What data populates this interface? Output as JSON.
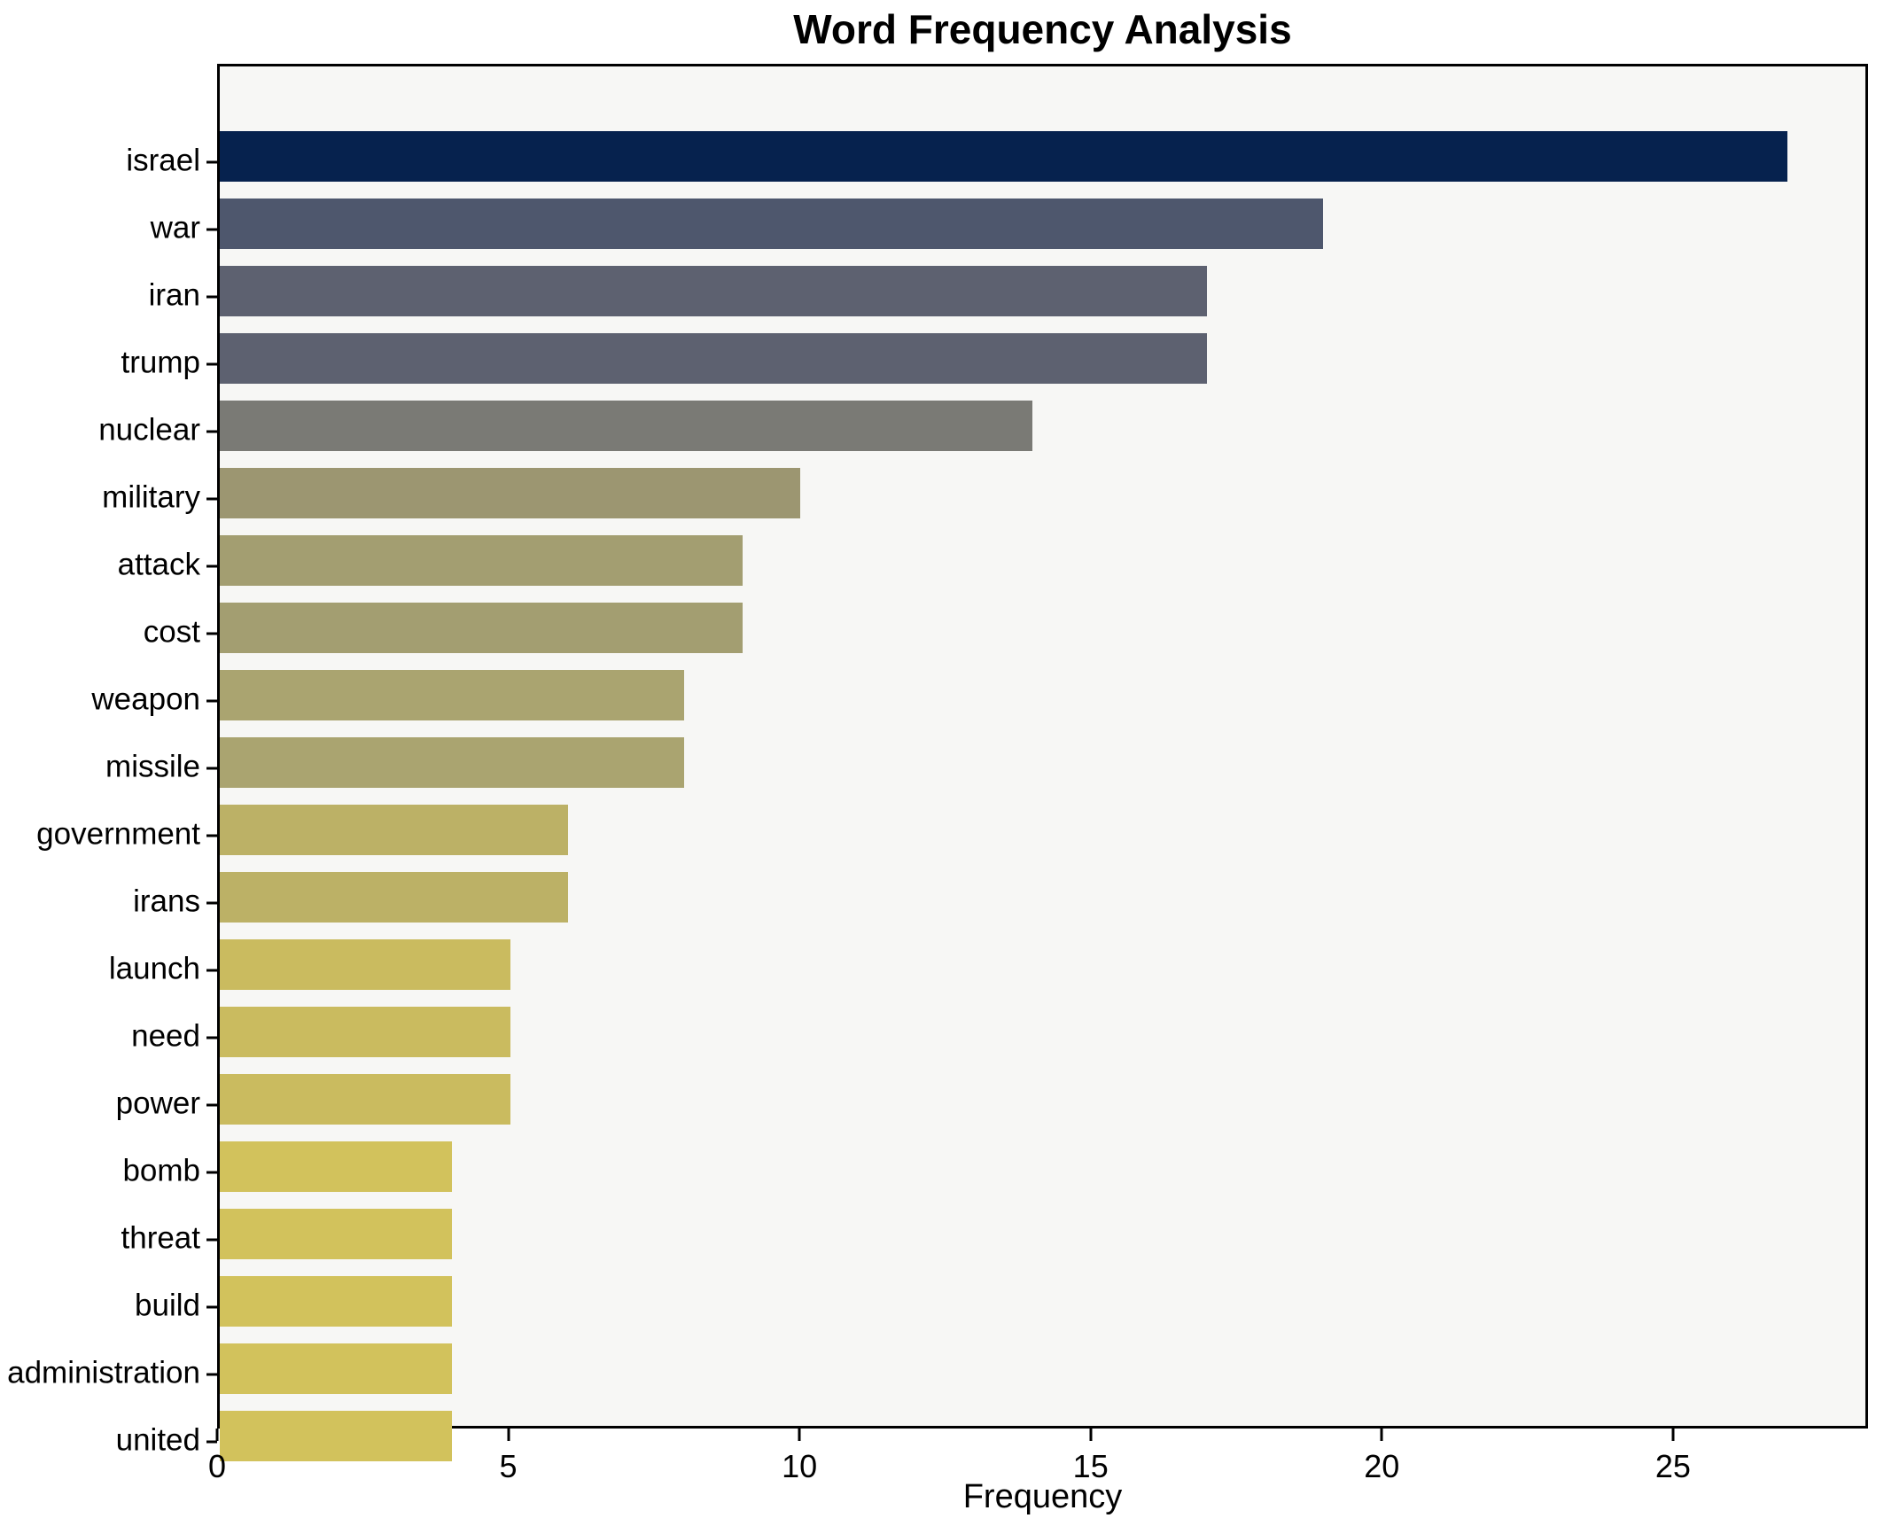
{
  "chart_data": {
    "type": "bar",
    "orientation": "horizontal",
    "title": "Word Frequency Analysis",
    "xlabel": "Frequency",
    "ylabel": "",
    "xlim": [
      0,
      28.35
    ],
    "xticks": [
      0,
      5,
      10,
      15,
      20,
      25
    ],
    "grid": false,
    "legend": false,
    "plot_background": "#f7f7f5",
    "figure_background": "#ffffff",
    "spine_color": "#000000",
    "text_color": "#000000",
    "categories": [
      "israel",
      "war",
      "iran",
      "trump",
      "nuclear",
      "military",
      "attack",
      "cost",
      "weapon",
      "missile",
      "government",
      "irans",
      "launch",
      "need",
      "power",
      "bomb",
      "threat",
      "build",
      "administration",
      "united"
    ],
    "values": [
      27,
      19,
      17,
      17,
      14,
      10,
      9,
      9,
      8,
      8,
      6,
      6,
      5,
      5,
      5,
      4,
      4,
      4,
      4,
      4
    ],
    "bar_colors": [
      "#06224e",
      "#4e576d",
      "#5d6170",
      "#5d6170",
      "#7a7a75",
      "#9c9671",
      "#a39e71",
      "#a39e71",
      "#aaa470",
      "#aaa470",
      "#bcb166",
      "#bcb166",
      "#cabb5f",
      "#cabb5f",
      "#cabb5f",
      "#d2c25c",
      "#d2c25c",
      "#d2c25c",
      "#d2c25c",
      "#d2c25c"
    ]
  }
}
